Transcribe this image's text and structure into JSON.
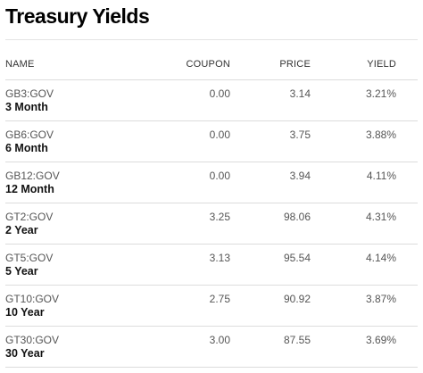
{
  "title": "Treasury Yields",
  "columns": {
    "name": "NAME",
    "coupon": "COUPON",
    "price": "PRICE",
    "yield": "YIELD"
  },
  "rows": [
    {
      "ticker": "GB3:GOV",
      "label": "3 Month",
      "coupon": "0.00",
      "price": "3.14",
      "yield": "3.21%"
    },
    {
      "ticker": "GB6:GOV",
      "label": "6 Month",
      "coupon": "0.00",
      "price": "3.75",
      "yield": "3.88%"
    },
    {
      "ticker": "GB12:GOV",
      "label": "12 Month",
      "coupon": "0.00",
      "price": "3.94",
      "yield": "4.11%"
    },
    {
      "ticker": "GT2:GOV",
      "label": "2 Year",
      "coupon": "3.25",
      "price": "98.06",
      "yield": "4.31%"
    },
    {
      "ticker": "GT5:GOV",
      "label": "5 Year",
      "coupon": "3.13",
      "price": "95.54",
      "yield": "4.14%"
    },
    {
      "ticker": "GT10:GOV",
      "label": "10 Year",
      "coupon": "2.75",
      "price": "90.92",
      "yield": "3.87%"
    },
    {
      "ticker": "GT30:GOV",
      "label": "30 Year",
      "coupon": "3.00",
      "price": "87.55",
      "yield": "3.69%"
    }
  ]
}
